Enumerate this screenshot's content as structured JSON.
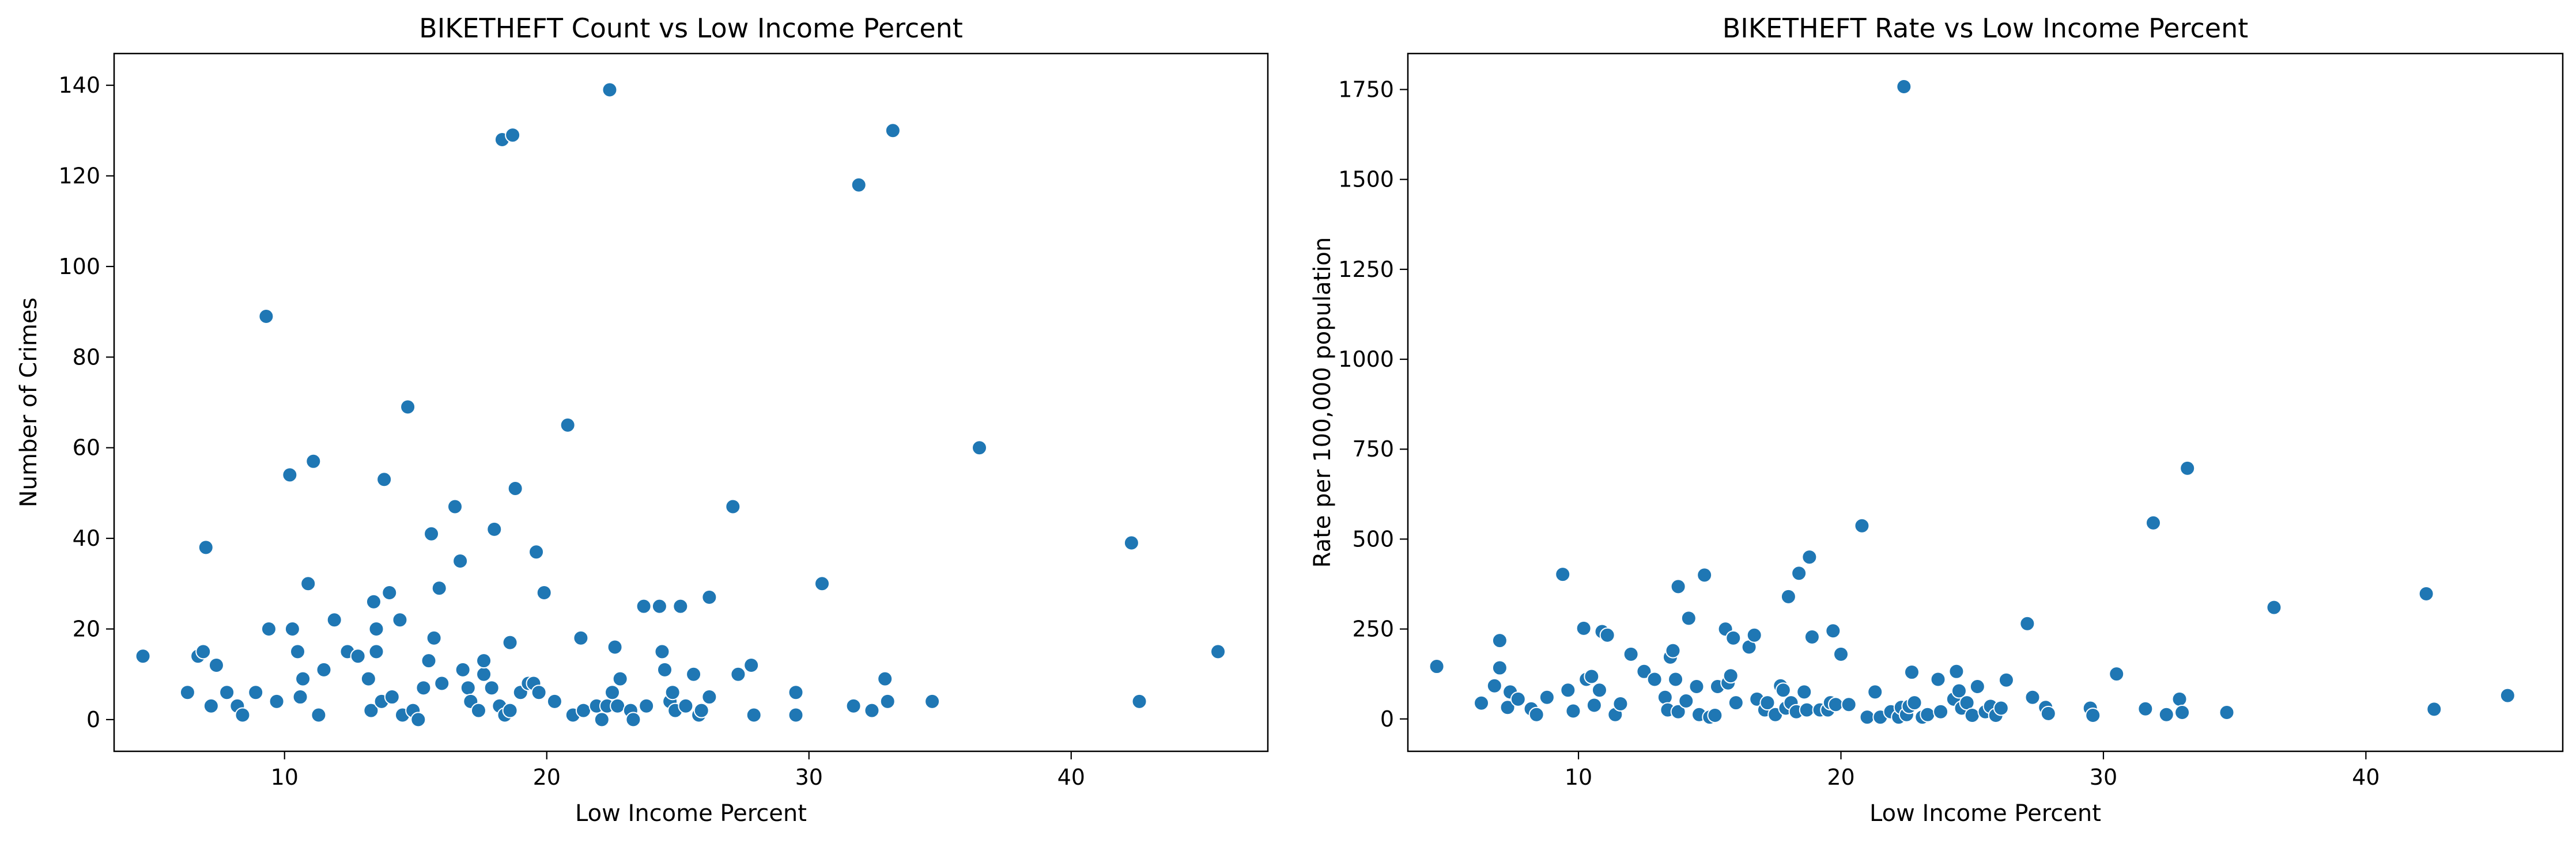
{
  "chart_data": [
    {
      "type": "scatter",
      "title": "BIKETHEFT Count vs Low Income Percent",
      "xlabel": "Low Income Percent",
      "ylabel": "Number of Crimes",
      "xlim": [
        3.5,
        47.5
      ],
      "ylim": [
        -7,
        147
      ],
      "xticks": [
        10,
        20,
        30,
        40
      ],
      "yticks": [
        0,
        20,
        40,
        60,
        80,
        100,
        120,
        140
      ],
      "marker_color": "#1f77b4",
      "points": [
        [
          4.6,
          14
        ],
        [
          6.3,
          6
        ],
        [
          6.7,
          14
        ],
        [
          6.9,
          15
        ],
        [
          7.0,
          38
        ],
        [
          7.2,
          3
        ],
        [
          7.4,
          12
        ],
        [
          7.8,
          6
        ],
        [
          8.2,
          3
        ],
        [
          8.4,
          1
        ],
        [
          8.9,
          6
        ],
        [
          9.3,
          89
        ],
        [
          9.4,
          20
        ],
        [
          9.7,
          4
        ],
        [
          10.2,
          54
        ],
        [
          10.3,
          20
        ],
        [
          10.5,
          15
        ],
        [
          10.6,
          5
        ],
        [
          10.7,
          9
        ],
        [
          10.9,
          30
        ],
        [
          11.1,
          57
        ],
        [
          11.3,
          1
        ],
        [
          11.5,
          11
        ],
        [
          11.9,
          22
        ],
        [
          12.4,
          15
        ],
        [
          12.8,
          14
        ],
        [
          13.2,
          9
        ],
        [
          13.3,
          2
        ],
        [
          13.4,
          26
        ],
        [
          13.5,
          15
        ],
        [
          13.5,
          20
        ],
        [
          13.7,
          4
        ],
        [
          13.8,
          53
        ],
        [
          14.0,
          28
        ],
        [
          14.1,
          5
        ],
        [
          14.4,
          22
        ],
        [
          14.5,
          1
        ],
        [
          14.7,
          69
        ],
        [
          14.9,
          2
        ],
        [
          15.1,
          0
        ],
        [
          15.3,
          7
        ],
        [
          15.5,
          13
        ],
        [
          15.6,
          41
        ],
        [
          15.7,
          18
        ],
        [
          15.9,
          29
        ],
        [
          16.0,
          8
        ],
        [
          16.5,
          47
        ],
        [
          16.7,
          35
        ],
        [
          16.8,
          11
        ],
        [
          17.0,
          7
        ],
        [
          17.1,
          4
        ],
        [
          17.4,
          2
        ],
        [
          17.6,
          10
        ],
        [
          17.6,
          13
        ],
        [
          17.9,
          7
        ],
        [
          18.0,
          42
        ],
        [
          18.2,
          3
        ],
        [
          18.3,
          128
        ],
        [
          18.4,
          1
        ],
        [
          18.6,
          17
        ],
        [
          18.6,
          2
        ],
        [
          18.7,
          129
        ],
        [
          18.8,
          51
        ],
        [
          19.0,
          6
        ],
        [
          19.3,
          8
        ],
        [
          19.5,
          8
        ],
        [
          19.6,
          37
        ],
        [
          19.7,
          6
        ],
        [
          19.9,
          28
        ],
        [
          20.3,
          4
        ],
        [
          20.8,
          65
        ],
        [
          21.0,
          1
        ],
        [
          21.3,
          18
        ],
        [
          21.4,
          2
        ],
        [
          21.9,
          3
        ],
        [
          22.1,
          0
        ],
        [
          22.3,
          3
        ],
        [
          22.4,
          139
        ],
        [
          22.5,
          6
        ],
        [
          22.6,
          16
        ],
        [
          22.7,
          3
        ],
        [
          22.8,
          9
        ],
        [
          23.2,
          2
        ],
        [
          23.3,
          0
        ],
        [
          23.7,
          25
        ],
        [
          23.8,
          3
        ],
        [
          24.3,
          25
        ],
        [
          24.4,
          15
        ],
        [
          24.5,
          11
        ],
        [
          24.7,
          4
        ],
        [
          24.8,
          6
        ],
        [
          24.9,
          2
        ],
        [
          25.1,
          25
        ],
        [
          25.3,
          3
        ],
        [
          25.6,
          10
        ],
        [
          25.8,
          1
        ],
        [
          25.9,
          2
        ],
        [
          26.2,
          5
        ],
        [
          26.2,
          27
        ],
        [
          27.1,
          47
        ],
        [
          27.3,
          10
        ],
        [
          27.8,
          12
        ],
        [
          27.9,
          1
        ],
        [
          29.5,
          6
        ],
        [
          29.5,
          1
        ],
        [
          30.5,
          30
        ],
        [
          31.7,
          3
        ],
        [
          31.9,
          118
        ],
        [
          32.4,
          2
        ],
        [
          32.9,
          9
        ],
        [
          33.0,
          4
        ],
        [
          33.2,
          130
        ],
        [
          34.7,
          4
        ],
        [
          36.5,
          60
        ],
        [
          42.3,
          39
        ],
        [
          42.6,
          4
        ],
        [
          45.6,
          15
        ]
      ]
    },
    {
      "type": "scatter",
      "title": "BIKETHEFT Rate vs Low Income Percent",
      "xlabel": "Low Income Percent",
      "ylabel": "Rate per 100,000 population",
      "xlim": [
        3.5,
        47.5
      ],
      "ylim": [
        -90,
        1850
      ],
      "xticks": [
        10,
        20,
        30,
        40
      ],
      "yticks": [
        0,
        250,
        500,
        750,
        1000,
        1250,
        1500,
        1750
      ],
      "marker_color": "#1f77b4",
      "points": [
        [
          4.6,
          146
        ],
        [
          6.3,
          44
        ],
        [
          6.8,
          92
        ],
        [
          7.0,
          218
        ],
        [
          7.0,
          142
        ],
        [
          7.3,
          32
        ],
        [
          7.4,
          75
        ],
        [
          7.7,
          55
        ],
        [
          8.2,
          28
        ],
        [
          8.4,
          12
        ],
        [
          8.8,
          60
        ],
        [
          9.4,
          402
        ],
        [
          9.6,
          80
        ],
        [
          9.8,
          22
        ],
        [
          10.2,
          252
        ],
        [
          10.3,
          110
        ],
        [
          10.5,
          118
        ],
        [
          10.6,
          38
        ],
        [
          10.8,
          80
        ],
        [
          10.9,
          243
        ],
        [
          11.1,
          233
        ],
        [
          11.4,
          12
        ],
        [
          11.6,
          42
        ],
        [
          12.0,
          180
        ],
        [
          12.5,
          132
        ],
        [
          12.9,
          110
        ],
        [
          13.3,
          60
        ],
        [
          13.4,
          25
        ],
        [
          13.5,
          172
        ],
        [
          13.6,
          190
        ],
        [
          13.7,
          110
        ],
        [
          13.8,
          368
        ],
        [
          13.8,
          20
        ],
        [
          14.1,
          50
        ],
        [
          14.2,
          280
        ],
        [
          14.5,
          90
        ],
        [
          14.6,
          12
        ],
        [
          14.8,
          400
        ],
        [
          15.0,
          5
        ],
        [
          15.2,
          10
        ],
        [
          15.3,
          90
        ],
        [
          15.6,
          250
        ],
        [
          15.7,
          100
        ],
        [
          15.8,
          120
        ],
        [
          15.9,
          225
        ],
        [
          16.0,
          45
        ],
        [
          16.5,
          200
        ],
        [
          16.7,
          233
        ],
        [
          16.8,
          55
        ],
        [
          17.1,
          25
        ],
        [
          17.2,
          45
        ],
        [
          17.5,
          12
        ],
        [
          17.7,
          92
        ],
        [
          17.8,
          80
        ],
        [
          17.9,
          30
        ],
        [
          18.0,
          340
        ],
        [
          18.1,
          45
        ],
        [
          18.3,
          20
        ],
        [
          18.4,
          405
        ],
        [
          18.6,
          75
        ],
        [
          18.7,
          25
        ],
        [
          18.8,
          450
        ],
        [
          18.9,
          228
        ],
        [
          19.2,
          25
        ],
        [
          19.5,
          25
        ],
        [
          19.6,
          45
        ],
        [
          19.7,
          245
        ],
        [
          19.8,
          40
        ],
        [
          20.0,
          180
        ],
        [
          20.3,
          40
        ],
        [
          20.8,
          537
        ],
        [
          21.0,
          5
        ],
        [
          21.3,
          75
        ],
        [
          21.5,
          5
        ],
        [
          21.9,
          20
        ],
        [
          22.2,
          5
        ],
        [
          22.3,
          32
        ],
        [
          22.4,
          1758
        ],
        [
          22.5,
          12
        ],
        [
          22.6,
          35
        ],
        [
          22.7,
          130
        ],
        [
          22.8,
          45
        ],
        [
          23.1,
          5
        ],
        [
          23.3,
          12
        ],
        [
          23.7,
          110
        ],
        [
          23.8,
          20
        ],
        [
          24.3,
          55
        ],
        [
          24.4,
          132
        ],
        [
          24.5,
          78
        ],
        [
          24.6,
          30
        ],
        [
          24.8,
          45
        ],
        [
          25.0,
          10
        ],
        [
          25.2,
          90
        ],
        [
          25.5,
          20
        ],
        [
          25.7,
          35
        ],
        [
          25.9,
          10
        ],
        [
          26.1,
          30
        ],
        [
          26.3,
          108
        ],
        [
          27.1,
          265
        ],
        [
          27.3,
          60
        ],
        [
          27.8,
          32
        ],
        [
          27.9,
          15
        ],
        [
          29.5,
          30
        ],
        [
          29.6,
          10
        ],
        [
          30.5,
          125
        ],
        [
          31.6,
          28
        ],
        [
          31.9,
          545
        ],
        [
          32.4,
          12
        ],
        [
          32.9,
          55
        ],
        [
          33.0,
          18
        ],
        [
          33.2,
          697
        ],
        [
          34.7,
          18
        ],
        [
          36.5,
          310
        ],
        [
          42.3,
          348
        ],
        [
          42.6,
          27
        ],
        [
          45.4,
          65
        ]
      ]
    }
  ]
}
